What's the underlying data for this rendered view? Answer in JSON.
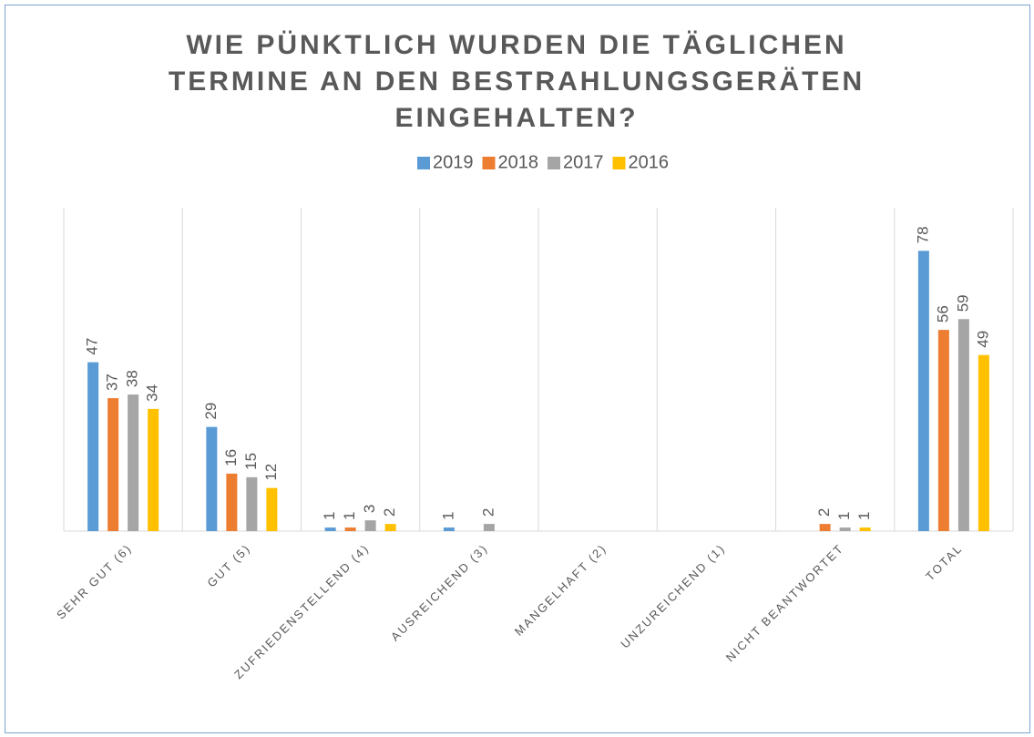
{
  "chart_data": {
    "type": "bar",
    "title": "WIE PÜNKTLICH WURDEN DIE TÄGLICHEN TERMINE AN DEN BESTRAHLUNGSGERÄTEN EINGEHALTEN?",
    "categories": [
      "SEHR GUT (6)",
      "GUT (5)",
      "ZUFRIEDENSTELLEND (4)",
      "AUSREICHEND (3)",
      "MANGELHAFT (2)",
      "UNZUREICHEND (1)",
      "NICHT BEANTWORTET",
      "TOTAL"
    ],
    "series": [
      {
        "name": "2019",
        "color": "#5b9bd5",
        "values": [
          47,
          29,
          1,
          1,
          null,
          null,
          null,
          78
        ]
      },
      {
        "name": "2018",
        "color": "#ed7d31",
        "values": [
          37,
          16,
          1,
          null,
          null,
          null,
          2,
          56
        ]
      },
      {
        "name": "2017",
        "color": "#a5a5a5",
        "values": [
          38,
          15,
          3,
          2,
          null,
          null,
          1,
          59
        ]
      },
      {
        "name": "2016",
        "color": "#ffc000",
        "values": [
          34,
          12,
          2,
          null,
          null,
          null,
          1,
          49
        ]
      }
    ],
    "ylim": [
      0,
      90
    ],
    "legend": "top"
  }
}
